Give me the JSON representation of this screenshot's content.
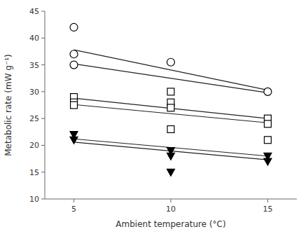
{
  "chart_data": {
    "type": "scatter",
    "xlabel": "Ambient temperature (°C)",
    "ylabel": "Metabolic rate (mW g⁻¹)",
    "xlim": [
      3.5,
      16.5
    ],
    "ylim": [
      10,
      45
    ],
    "xticks": [
      5,
      10,
      15
    ],
    "yticks": [
      10,
      15,
      20,
      25,
      30,
      35,
      40,
      45
    ],
    "grid": false,
    "series": [
      {
        "type": "line",
        "color": "#222222",
        "x": [
          5,
          15
        ],
        "values": [
          37.8,
          30.3
        ]
      },
      {
        "type": "line",
        "color": "#222222",
        "x": [
          5,
          15
        ],
        "values": [
          35.2,
          29.8
        ]
      },
      {
        "type": "line",
        "color": "#222222",
        "x": [
          5,
          15
        ],
        "values": [
          28.8,
          25.0
        ]
      },
      {
        "type": "line",
        "color": "#222222",
        "x": [
          5,
          15
        ],
        "values": [
          27.6,
          24.2
        ]
      },
      {
        "type": "line",
        "color": "#222222",
        "x": [
          5,
          15
        ],
        "values": [
          21.2,
          18.0
        ]
      },
      {
        "type": "line",
        "color": "#222222",
        "x": [
          5,
          15
        ],
        "values": [
          20.6,
          17.3
        ]
      },
      {
        "type": "scatter",
        "marker": "circle",
        "color": "white",
        "x": [
          5,
          5,
          5,
          10,
          15
        ],
        "values": [
          42,
          37,
          35,
          35.5,
          30
        ]
      },
      {
        "type": "scatter",
        "marker": "square",
        "color": "white",
        "x": [
          5,
          5,
          5,
          10,
          10,
          10,
          10,
          15,
          15,
          15
        ],
        "values": [
          29,
          28,
          27.5,
          30,
          28,
          27,
          23,
          25,
          24,
          21
        ]
      },
      {
        "type": "scatter",
        "marker": "triangle-down",
        "color": "black",
        "x": [
          5,
          5,
          10,
          10,
          10,
          15,
          15
        ],
        "values": [
          22,
          21,
          19,
          18,
          15,
          18,
          17
        ]
      }
    ]
  }
}
